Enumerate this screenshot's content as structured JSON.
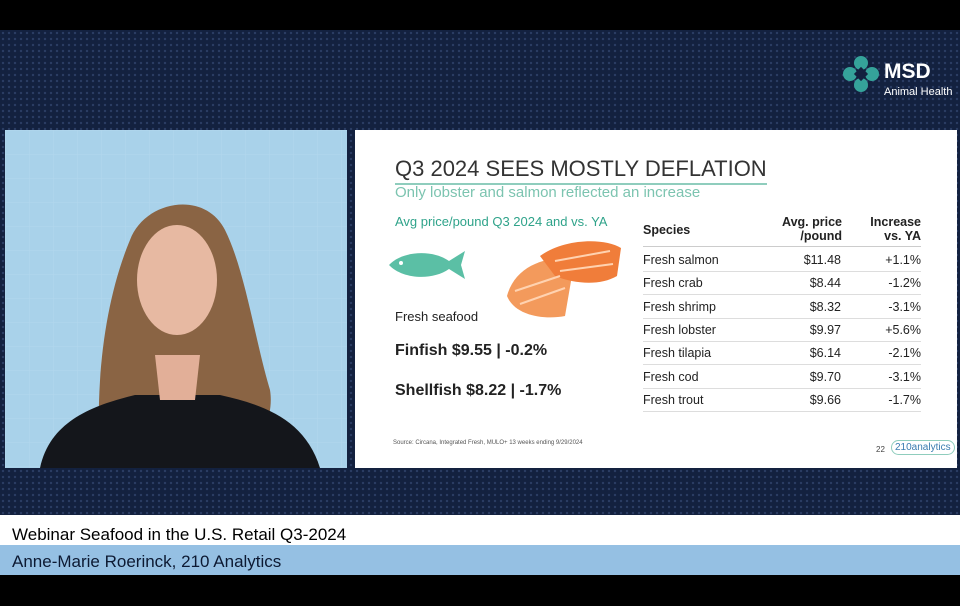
{
  "logo": {
    "brand": "MSD",
    "subtitle": "Animal Health"
  },
  "slide": {
    "title": "Q3 2024 SEES MOSTLY DEFLATION",
    "subtitle": "Only lobster and salmon reflected an increase",
    "left_heading": "Avg price/pound Q3 2024 and vs. YA",
    "category": "Fresh seafood",
    "finfish": "Finfish $9.55 | -0.2%",
    "shellfish": "Shellfish $8.22 | -1.7%",
    "table": {
      "headers": [
        "Species",
        "Avg. price /pound",
        "Increase vs. YA"
      ],
      "rows": [
        [
          "Fresh salmon",
          "$11.48",
          "+1.1%"
        ],
        [
          "Fresh crab",
          "$8.44",
          "-1.2%"
        ],
        [
          "Fresh shrimp",
          "$8.32",
          "-3.1%"
        ],
        [
          "Fresh lobster",
          "$9.97",
          "+5.6%"
        ],
        [
          "Fresh tilapia",
          "$6.14",
          "-2.1%"
        ],
        [
          "Fresh cod",
          "$9.70",
          "-3.1%"
        ],
        [
          "Fresh trout",
          "$9.66",
          "-1.7%"
        ]
      ]
    },
    "source": "Source: Circana, Integrated Fresh, MULO+ 13 weeks ending 9/29/2024",
    "page_number": "22",
    "company_logo": "210analytics"
  },
  "lower_third": {
    "title": "Webinar Seafood in the U.S. Retail Q3-2024",
    "speaker": "Anne-Marie Roerinck, 210 Analytics"
  }
}
